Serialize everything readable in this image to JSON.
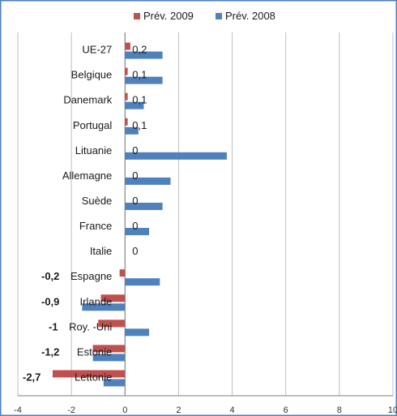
{
  "chart_data": {
    "type": "bar",
    "orientation": "horizontal",
    "categories": [
      "UE-27",
      "Belgique",
      "Danemark",
      "Portugal",
      "Lituanie",
      "Allemagne",
      "Suède",
      "France",
      "Italie",
      "Espagne",
      "Irlande",
      "Roy. -Uni",
      "Estonie",
      "Lettonie"
    ],
    "series": [
      {
        "name": "Prév. 2009",
        "color": "#c0504d",
        "values": [
          0.2,
          0.1,
          0.1,
          0.1,
          0,
          0,
          0,
          0,
          0,
          -0.2,
          -0.9,
          -1,
          -1.2,
          -2.7
        ],
        "labels": [
          "0,2",
          "0,1",
          "0,1",
          "0,1",
          "0",
          "0",
          "0",
          "0",
          "0",
          "-0,2",
          "-0,9",
          "-1",
          "-1,2",
          "-2,7"
        ]
      },
      {
        "name": "Prév. 2008",
        "color": "#4f81bd",
        "values": [
          1.4,
          1.4,
          0.7,
          0.5,
          3.8,
          1.7,
          1.4,
          0.9,
          0,
          1.3,
          -1.6,
          0.9,
          -1.2,
          -0.8
        ]
      }
    ],
    "xlim": [
      -4,
      10
    ],
    "xticks": [
      "-4",
      "-2",
      "0",
      "2",
      "4",
      "6",
      "8",
      "10"
    ],
    "grid": "vertical",
    "legend": "top"
  }
}
